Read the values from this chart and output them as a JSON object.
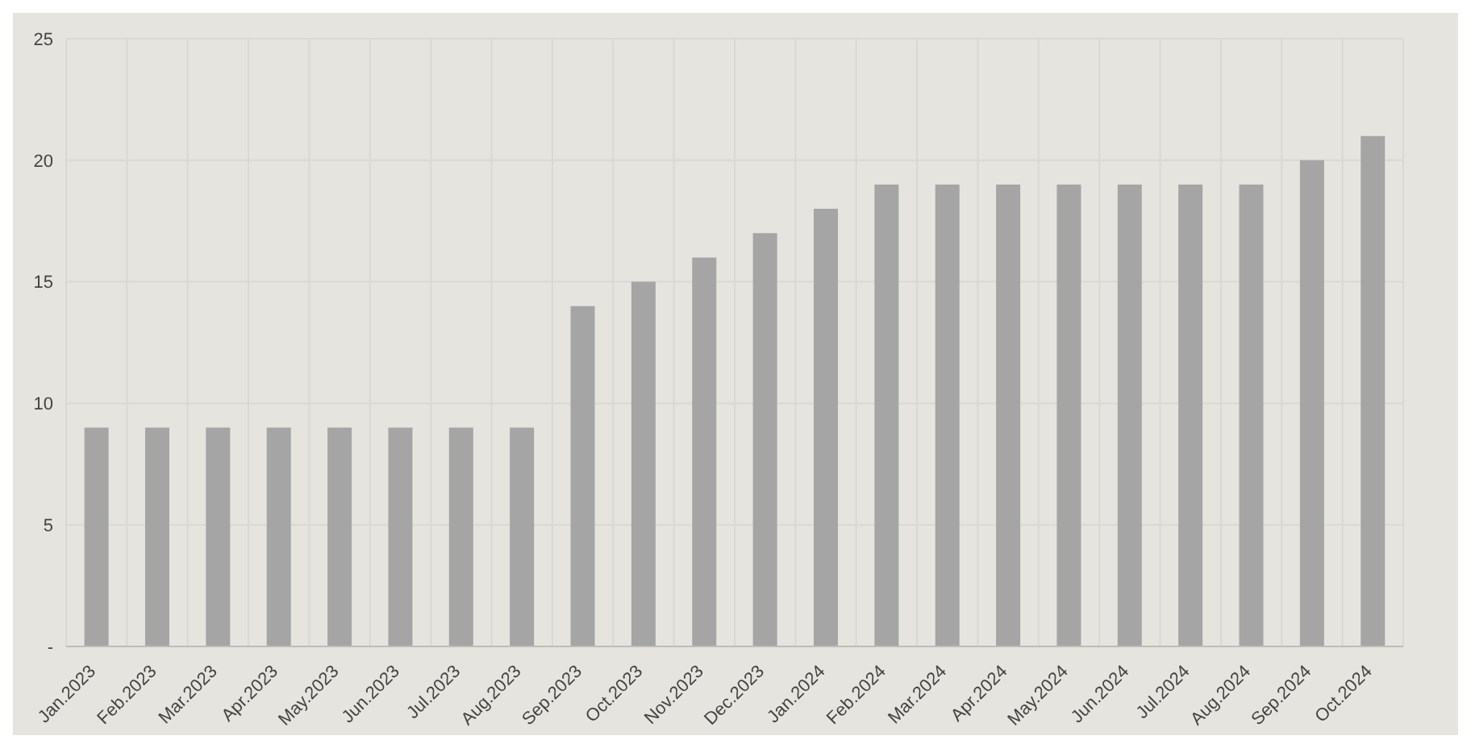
{
  "chart_data": {
    "type": "bar",
    "categories": [
      "Jan.2023",
      "Feb.2023",
      "Mar.2023",
      "Apr.2023",
      "May.2023",
      "Jun.2023",
      "Jul.2023",
      "Aug.2023",
      "Sep.2023",
      "Oct.2023",
      "Nov.2023",
      "Dec.2023",
      "Jan.2024",
      "Feb.2024",
      "Mar.2024",
      "Apr.2024",
      "May.2024",
      "Jun.2024",
      "Jul.2024",
      "Aug.2024",
      "Sep.2024",
      "Oct.2024"
    ],
    "values": [
      9,
      9,
      9,
      9,
      9,
      9,
      9,
      9,
      14,
      15,
      16,
      17,
      18,
      19,
      19,
      19,
      19,
      19,
      19,
      19,
      20,
      21
    ],
    "color": "#a5a5a5",
    "ylim": [
      0,
      25
    ],
    "yticks": [
      {
        "value": 0,
        "label": "-"
      },
      5,
      10,
      15,
      20,
      25
    ],
    "grid": true
  }
}
